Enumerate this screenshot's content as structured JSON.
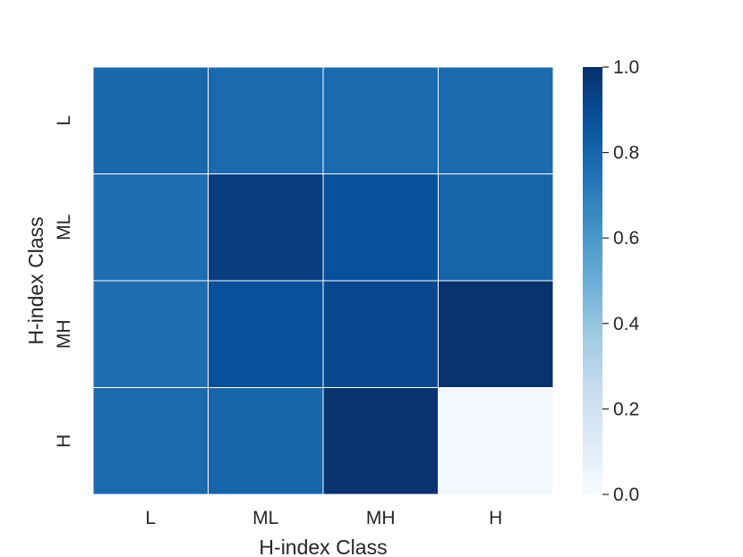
{
  "chart_data": {
    "type": "heatmap",
    "xlabel": "H-index Class",
    "ylabel": "H-index Class",
    "x_categories": [
      "L",
      "ML",
      "MH",
      "H"
    ],
    "y_categories": [
      "L",
      "ML",
      "MH",
      "H"
    ],
    "values": [
      [
        0.79,
        0.78,
        0.78,
        0.78
      ],
      [
        0.76,
        0.95,
        0.88,
        0.8
      ],
      [
        0.76,
        0.88,
        0.91,
        0.99
      ],
      [
        0.78,
        0.8,
        0.99,
        0.02
      ]
    ],
    "colorbar": {
      "range": [
        0.0,
        1.0
      ],
      "ticks": [
        "0.0",
        "0.2",
        "0.4",
        "0.6",
        "0.8",
        "1.0"
      ],
      "colormap": "Blues"
    },
    "grid": true,
    "legend": "right"
  }
}
